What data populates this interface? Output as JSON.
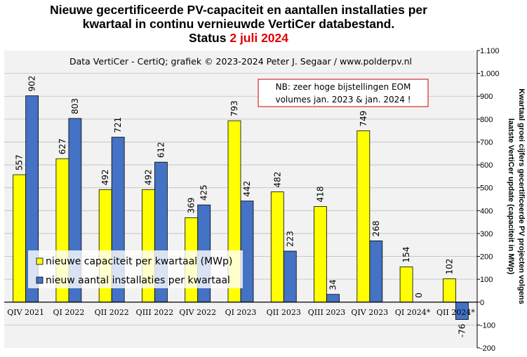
{
  "title": {
    "line1": "Nieuwe gecertificeerde PV-capaciteit en aantallen installaties per",
    "line2": "kwartaal in continu vernieuwde VertiCer databestand.",
    "status_label": "Status",
    "status_date": "2 juli 2024"
  },
  "chart_data": {
    "type": "bar",
    "source_text": "Data VertiCer - CertiQ; grafiek © 2023-2024 Peter J. Segaar / www.polderpv.nl",
    "note_lines": [
      "NB: zeer hoge bijstellingen EOM",
      "volumes jan. 2023 & jan. 2024 !"
    ],
    "ylabel_lines": [
      "Kwartaal groei cijfers gecertificeerde PV projecten volgens",
      "laatste VertiCer update (capaciteit in MWp)"
    ],
    "categories": [
      "QIV 2021",
      "QI 2022",
      "QII 2022",
      "QIII 2022",
      "QIV 2022",
      "QI 2023",
      "QII 2023",
      "QIII 2023",
      "QIV 2023",
      "QI 2024*",
      "QII 2024*"
    ],
    "series": [
      {
        "name": "nieuwe capaciteit per kwartaal (MWp)",
        "color": "#ffff00",
        "values": [
          557,
          627,
          492,
          492,
          369,
          793,
          482,
          418,
          749,
          154,
          102
        ]
      },
      {
        "name": "nieuw aantal installaties per kwartaal",
        "color": "#4472c4",
        "values": [
          902,
          803,
          721,
          612,
          425,
          442,
          223,
          34,
          268,
          0,
          -76
        ]
      }
    ],
    "ylim": [
      -200,
      1100
    ],
    "yticks": [
      -200,
      -100,
      0,
      100,
      200,
      300,
      400,
      500,
      600,
      700,
      800,
      900,
      1000,
      1100
    ],
    "ytick_labels": [
      "-200",
      "-100",
      "0",
      "100",
      "200",
      "300",
      "400",
      "500",
      "600",
      "700",
      "800",
      "900",
      "1.000",
      "1.100"
    ],
    "grid": true,
    "y_axis_side": "right",
    "legend_position": "lower-left",
    "plot_background": "#f2f2f2"
  }
}
